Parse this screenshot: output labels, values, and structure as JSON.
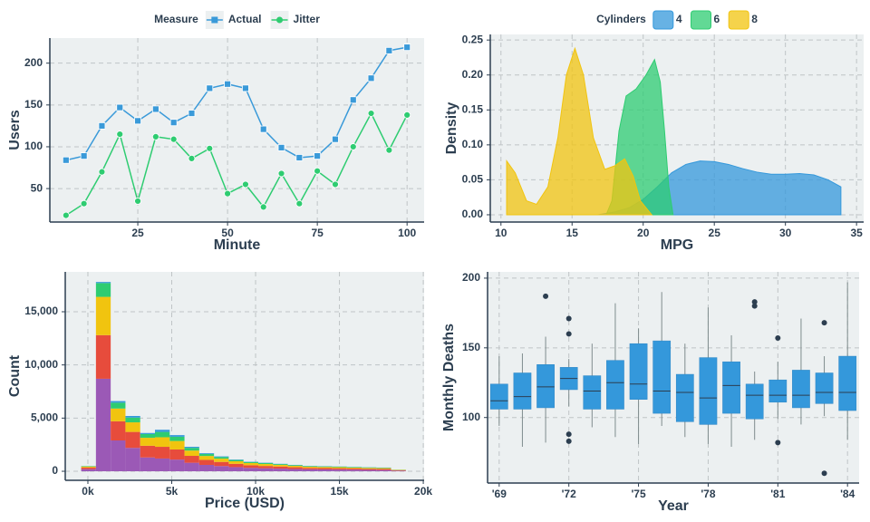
{
  "chart_data": [
    {
      "type": "line",
      "x_label": "Minute",
      "y_label": "Users",
      "legend_title": "Measure",
      "legend": "top",
      "x": [
        5,
        10,
        15,
        20,
        25,
        30,
        35,
        40,
        45,
        50,
        55,
        60,
        65,
        70,
        75,
        80,
        85,
        90,
        95,
        100
      ],
      "series": [
        {
          "name": "Actual",
          "color": "#3a9ad9",
          "marker": "square",
          "values": [
            84,
            89,
            125,
            147,
            131,
            145,
            129,
            140,
            170,
            175,
            170,
            121,
            99,
            87,
            89,
            109,
            156,
            182,
            215,
            219
          ]
        },
        {
          "name": "Jitter",
          "color": "#2ecc71",
          "marker": "circle",
          "values": [
            18,
            32,
            70,
            115,
            35,
            112,
            109,
            86,
            98,
            44,
            55,
            28,
            68,
            32,
            71,
            55,
            100,
            140,
            96,
            138
          ]
        }
      ],
      "xlim": [
        0.5,
        104.75
      ],
      "xticks": [
        25,
        50,
        75,
        100
      ],
      "ylim": [
        10,
        230
      ],
      "yticks": [
        50,
        100,
        150,
        200
      ],
      "grid": true
    },
    {
      "type": "density",
      "x_label": "MPG",
      "y_label": "Density",
      "legend_title": "Cylinders",
      "legend": "top",
      "series": [
        {
          "name": "4",
          "color": "#3498db",
          "x": [
            16.8,
            18,
            19,
            20,
            21,
            22,
            23,
            24,
            25,
            26,
            27,
            28,
            29,
            30,
            31,
            32,
            33,
            33.9
          ],
          "values": [
            0,
            0.004,
            0.01,
            0.022,
            0.04,
            0.06,
            0.072,
            0.077,
            0.076,
            0.072,
            0.066,
            0.061,
            0.058,
            0.058,
            0.059,
            0.057,
            0.05,
            0.04
          ]
        },
        {
          "name": "6",
          "color": "#2ecc71",
          "x": [
            17.4,
            17.8,
            18.3,
            18.8,
            19.5,
            20.2,
            20.8,
            21.2,
            21.5,
            21.8,
            22.1
          ],
          "values": [
            0,
            0.02,
            0.12,
            0.17,
            0.18,
            0.2,
            0.222,
            0.19,
            0.12,
            0.04,
            0
          ]
        },
        {
          "name": "8",
          "color": "#f1c40f",
          "x": [
            10.4,
            11,
            11.8,
            12.5,
            13.3,
            14,
            14.6,
            15.2,
            15.8,
            16.5,
            17.3,
            18,
            18.7,
            19.3,
            19.8,
            20.6
          ],
          "values": [
            0.077,
            0.06,
            0.02,
            0.015,
            0.04,
            0.11,
            0.2,
            0.238,
            0.2,
            0.11,
            0.065,
            0.07,
            0.08,
            0.055,
            0.02,
            0
          ]
        }
      ],
      "xlim": [
        9.25,
        35.5
      ],
      "xticks": [
        10,
        15,
        20,
        25,
        30,
        35
      ],
      "ylim": [
        -0.0104,
        0.258
      ],
      "yticks": [
        {
          "value": 0,
          "label": "0.00"
        },
        0.05,
        {
          "value": 0.1,
          "label": "0.10"
        },
        0.15,
        {
          "value": 0.2,
          "label": "0.20"
        },
        0.25
      ],
      "grid": true
    },
    {
      "type": "histogram",
      "x_label": "Price (USD)",
      "y_label": "Count",
      "bins": [
        -400,
        480,
        1360,
        2240,
        3120,
        4000,
        4880,
        5760,
        6640,
        7520,
        8400,
        9280,
        10160,
        11040,
        11920,
        12800,
        13680,
        14560,
        15440,
        16320,
        17200,
        18080,
        18960
      ],
      "series": [
        {
          "color": "#9b59b6",
          "values": [
            200,
            8700,
            2900,
            2200,
            1300,
            1200,
            1100,
            800,
            600,
            490,
            390,
            320,
            280,
            250,
            210,
            180,
            170,
            160,
            150,
            130,
            120,
            55
          ]
        },
        {
          "color": "#e74c3c",
          "values": [
            150,
            4100,
            1800,
            1500,
            1100,
            1100,
            950,
            650,
            470,
            390,
            310,
            250,
            220,
            200,
            170,
            140,
            135,
            125,
            115,
            105,
            100,
            40
          ]
        },
        {
          "color": "#f1c40f",
          "values": [
            100,
            3600,
            1200,
            900,
            750,
            900,
            800,
            500,
            370,
            310,
            240,
            200,
            180,
            150,
            130,
            110,
            105,
            100,
            90,
            85,
            75,
            35
          ]
        },
        {
          "color": "#2ecc71",
          "values": [
            40,
            1300,
            550,
            450,
            350,
            500,
            400,
            250,
            190,
            150,
            120,
            100,
            90,
            75,
            65,
            50,
            50,
            50,
            45,
            45,
            40,
            15
          ]
        },
        {
          "color": "#3498db",
          "values": [
            10,
            100,
            150,
            150,
            100,
            200,
            150,
            100,
            70,
            60,
            40,
            30,
            30,
            25,
            25,
            20,
            20,
            15,
            20,
            15,
            15,
            5
          ]
        }
      ],
      "xlim": [
        -1350,
        20050
      ],
      "xticks": [
        {
          "value": 0,
          "label": "0k"
        },
        {
          "value": 5000,
          "label": "5k"
        },
        {
          "value": 10000,
          "label": "10k"
        },
        {
          "value": 15000,
          "label": "15k"
        },
        {
          "value": 20000,
          "label": "20k"
        }
      ],
      "ylim": [
        -850,
        18750
      ],
      "yticks": [
        0,
        {
          "value": 5000,
          "label": "5,000"
        },
        {
          "value": 10000,
          "label": "10,000"
        },
        {
          "value": 15000,
          "label": "15,000"
        }
      ],
      "grid": true
    },
    {
      "type": "box",
      "x_label": "Year",
      "y_label": "Monthly Deaths",
      "color": "#3498db",
      "outlier_color": "#2c3e50",
      "categories": [
        "'69",
        null,
        null,
        "'72",
        null,
        null,
        "'75",
        null,
        null,
        "'78",
        null,
        null,
        "'81",
        null,
        null,
        "'84"
      ],
      "boxes": [
        {
          "min": 94,
          "q1": 106,
          "median": 112,
          "q3": 124,
          "max": 144,
          "outliers": []
        },
        {
          "min": 79,
          "q1": 106,
          "median": 115,
          "q3": 132,
          "max": 146,
          "outliers": []
        },
        {
          "min": 82,
          "q1": 107,
          "median": 122,
          "q3": 138,
          "max": 158,
          "outliers": [
            187
          ]
        },
        {
          "min": 108,
          "q1": 120,
          "median": 128,
          "q3": 136,
          "max": 142,
          "outliers": [
            171,
            160,
            88,
            83
          ]
        },
        {
          "min": 93,
          "q1": 106,
          "median": 119,
          "q3": 130,
          "max": 153,
          "outliers": []
        },
        {
          "min": 86,
          "q1": 106,
          "median": 125,
          "q3": 141,
          "max": 182,
          "outliers": []
        },
        {
          "min": 81,
          "q1": 113,
          "median": 124,
          "q3": 153,
          "max": 164,
          "outliers": []
        },
        {
          "min": 94,
          "q1": 103,
          "median": 119,
          "q3": 155,
          "max": 190,
          "outliers": []
        },
        {
          "min": 86,
          "q1": 97,
          "median": 118,
          "q3": 131,
          "max": 153,
          "outliers": []
        },
        {
          "min": 81,
          "q1": 95,
          "median": 114,
          "q3": 143,
          "max": 179,
          "outliers": []
        },
        {
          "min": 79,
          "q1": 103,
          "median": 123,
          "q3": 140,
          "max": 159,
          "outliers": []
        },
        {
          "min": 84,
          "q1": 99,
          "median": 116,
          "q3": 124,
          "max": 133,
          "outliers": [
            183,
            180
          ]
        },
        {
          "min": 99,
          "q1": 111,
          "median": 116,
          "q3": 127,
          "max": 140,
          "outliers": [
            157,
            82
          ]
        },
        {
          "min": 95,
          "q1": 107,
          "median": 116,
          "q3": 134,
          "max": 171,
          "outliers": []
        },
        {
          "min": 101,
          "q1": 110,
          "median": 118,
          "q3": 132,
          "max": 144,
          "outliers": [
            168,
            60
          ]
        },
        {
          "min": 84,
          "q1": 105,
          "median": 118,
          "q3": 144,
          "max": 197,
          "outliers": []
        }
      ],
      "ylim": [
        53,
        204.5
      ],
      "yticks": [
        100,
        150,
        200
      ],
      "grid": true
    }
  ]
}
